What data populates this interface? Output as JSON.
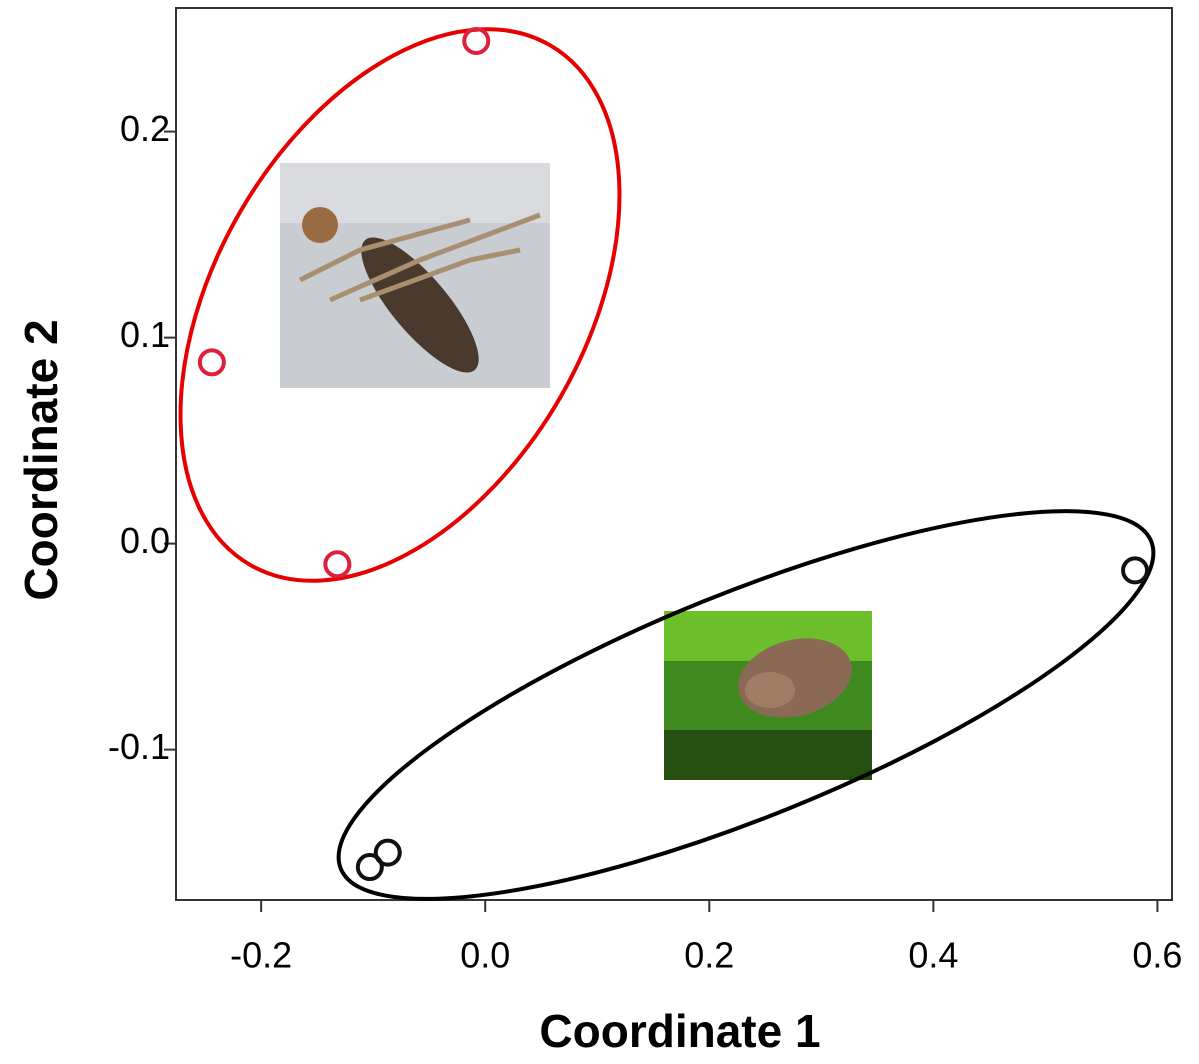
{
  "chart_data": {
    "type": "scatter",
    "xlabel": "Coordinate 1",
    "ylabel": "Coordinate 2",
    "xlim": [
      -0.276,
      0.613
    ],
    "ylim": [
      -0.173,
      0.26
    ],
    "xticks": [
      -0.2,
      {
        "value": 0,
        "label": "0.0"
      },
      0.2,
      0.4,
      0.6
    ],
    "yticks": [
      -0.1,
      {
        "value": 0,
        "label": "0.0"
      },
      0.1,
      0.2
    ],
    "series": [
      {
        "color": "#e0203a",
        "x": [
          -0.008,
          -0.244,
          -0.132
        ],
        "values": [
          0.244,
          0.088,
          -0.01
        ]
      },
      {
        "color": "#111111",
        "x": [
          0.58,
          -0.087,
          -0.103
        ],
        "values": [
          -0.013,
          -0.15,
          -0.157
        ]
      }
    ]
  }
}
